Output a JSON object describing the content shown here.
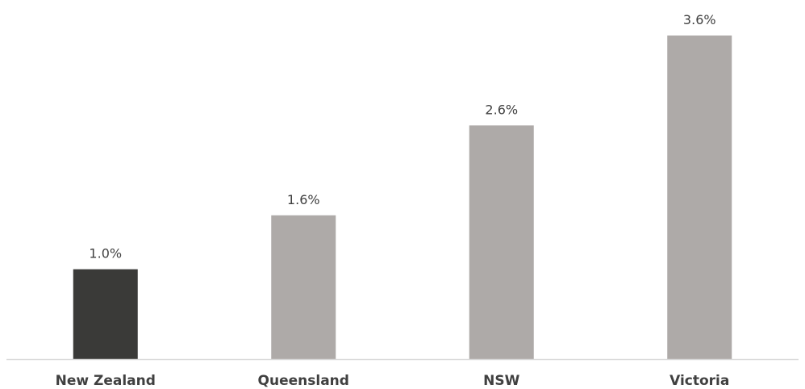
{
  "chart_data": {
    "type": "bar",
    "categories": [
      "New Zealand",
      "Queensland",
      "NSW",
      "Victoria"
    ],
    "values": [
      1.0,
      1.6,
      2.6,
      3.6
    ],
    "data_labels": [
      "1.0%",
      "1.6%",
      "2.6%",
      "3.6%"
    ],
    "title": "",
    "xlabel": "",
    "ylabel": "",
    "ylim": [
      0,
      3.6
    ],
    "grid": false,
    "legend": "none",
    "bar_colors": [
      "#3a3a38",
      "#aeaaa8",
      "#aeaaa8",
      "#aeaaa8"
    ],
    "axis_color": "#d9d9d9"
  }
}
